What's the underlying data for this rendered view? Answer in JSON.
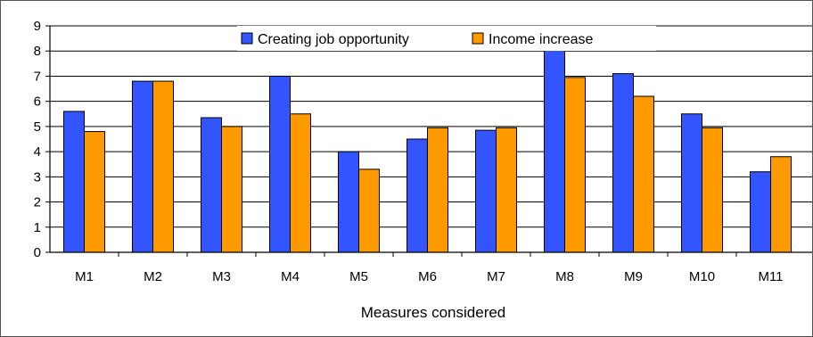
{
  "chart_data": {
    "type": "bar",
    "categories": [
      "M1",
      "M2",
      "M3",
      "M4",
      "M5",
      "M6",
      "M7",
      "M8",
      "M9",
      "M10",
      "M11"
    ],
    "series": [
      {
        "name": "Creating job opportunity",
        "color": "#3355ff",
        "values": [
          5.6,
          6.8,
          5.35,
          7.0,
          4.0,
          4.5,
          4.85,
          8.15,
          7.1,
          5.5,
          3.2
        ]
      },
      {
        "name": "Income increase",
        "color": "#ff9900",
        "values": [
          4.8,
          6.8,
          5.0,
          5.5,
          3.3,
          4.95,
          4.95,
          6.95,
          6.2,
          4.95,
          3.8
        ]
      }
    ],
    "xlabel": "Measures considered",
    "ylabel": "",
    "ylim": [
      0,
      9
    ],
    "yticks": [
      "0",
      "1",
      "2",
      "3",
      "4",
      "5",
      "6",
      "7",
      "8",
      "9"
    ],
    "grid": true,
    "legend_position": "top-center"
  }
}
